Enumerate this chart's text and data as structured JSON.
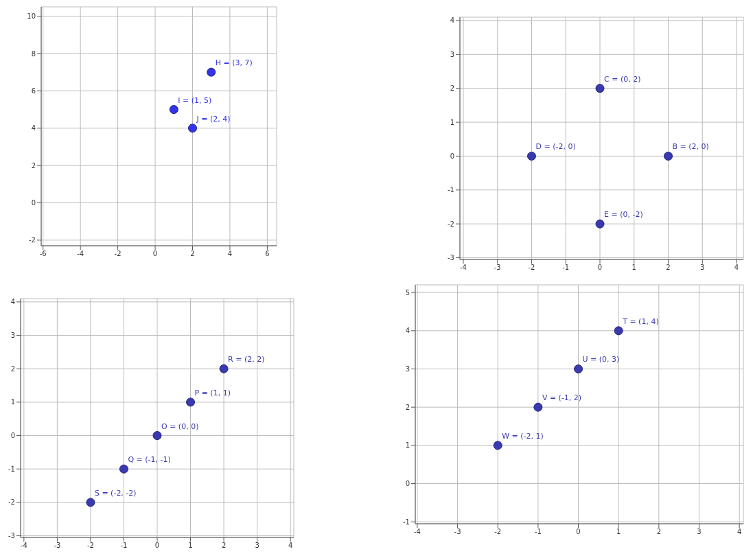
{
  "chart_data": [
    {
      "type": "scatter",
      "x": [
        3,
        1,
        2
      ],
      "series": [
        {
          "color": "#3333ee",
          "values": [
            7,
            5,
            4
          ]
        }
      ],
      "xlim": [
        -6.1,
        6.5
      ],
      "ylim": [
        -2.3,
        10.5
      ],
      "xticks": [
        -6,
        -4,
        -2,
        0,
        2,
        4,
        6
      ],
      "yticks": [
        -2,
        0,
        2,
        4,
        6,
        8,
        10
      ],
      "grid": true,
      "marker": "circle",
      "annotations": [
        {
          "text": "H = (3, 7)",
          "x": 3,
          "y": 7
        },
        {
          "text": "I = (1, 5)",
          "x": 1,
          "y": 5
        },
        {
          "text": "J = (2, 4)",
          "x": 2,
          "y": 4
        }
      ]
    },
    {
      "type": "scatter",
      "x": [
        0,
        -2,
        2,
        0
      ],
      "series": [
        {
          "color": "#3a3ab0",
          "values": [
            2,
            0,
            0,
            -2
          ]
        }
      ],
      "xlim": [
        -4.1,
        4.2
      ],
      "ylim": [
        -3.05,
        4.1
      ],
      "xticks": [
        -4,
        -3,
        -2,
        -1,
        0,
        1,
        2,
        3,
        4
      ],
      "yticks": [
        -3,
        -2,
        -1,
        0,
        1,
        2,
        3,
        4
      ],
      "grid": true,
      "marker": "circle",
      "annotations": [
        {
          "text": "C = (0, 2)",
          "x": 0,
          "y": 2
        },
        {
          "text": "D = (-2, 0)",
          "x": -2,
          "y": 0
        },
        {
          "text": "B = (2, 0)",
          "x": 2,
          "y": 0
        },
        {
          "text": "E = (0, -2)",
          "x": 0,
          "y": -2
        }
      ]
    },
    {
      "type": "scatter",
      "x": [
        2,
        1,
        0,
        -1,
        -2
      ],
      "series": [
        {
          "color": "#3a3ab0",
          "values": [
            2,
            1,
            0,
            -1,
            -2
          ]
        }
      ],
      "xlim": [
        -4.1,
        4.1
      ],
      "ylim": [
        -3.05,
        4.1
      ],
      "xticks": [
        -4,
        -3,
        -2,
        -1,
        0,
        1,
        2,
        3,
        4
      ],
      "yticks": [
        -3,
        -2,
        -1,
        0,
        1,
        2,
        3,
        4
      ],
      "grid": true,
      "marker": "circle",
      "annotations": [
        {
          "text": "R = (2, 2)",
          "x": 2,
          "y": 2
        },
        {
          "text": "P = (1, 1)",
          "x": 1,
          "y": 1
        },
        {
          "text": "O = (0, 0)",
          "x": 0,
          "y": 0
        },
        {
          "text": "Q = (-1, -1)",
          "x": -1,
          "y": -1
        },
        {
          "text": "S = (-2, -2)",
          "x": -2,
          "y": -2
        }
      ]
    },
    {
      "type": "scatter",
      "x": [
        1,
        0,
        -1,
        -2
      ],
      "series": [
        {
          "color": "#3a3ab0",
          "values": [
            4,
            3,
            2,
            1
          ]
        }
      ],
      "xlim": [
        -4.05,
        4.1
      ],
      "ylim": [
        -1.05,
        5.2
      ],
      "xticks": [
        -4,
        -3,
        -2,
        -1,
        0,
        1,
        2,
        3,
        4
      ],
      "yticks": [
        -1,
        0,
        1,
        2,
        3,
        4,
        5
      ],
      "grid": true,
      "marker": "circle",
      "annotations": [
        {
          "text": "T = (1, 4)",
          "x": 1,
          "y": 4
        },
        {
          "text": "U = (0, 3)",
          "x": 0,
          "y": 3
        },
        {
          "text": "V = (-1, 2)",
          "x": -1,
          "y": 2
        },
        {
          "text": "W = (-2, 1)",
          "x": -2,
          "y": 1
        }
      ]
    }
  ]
}
